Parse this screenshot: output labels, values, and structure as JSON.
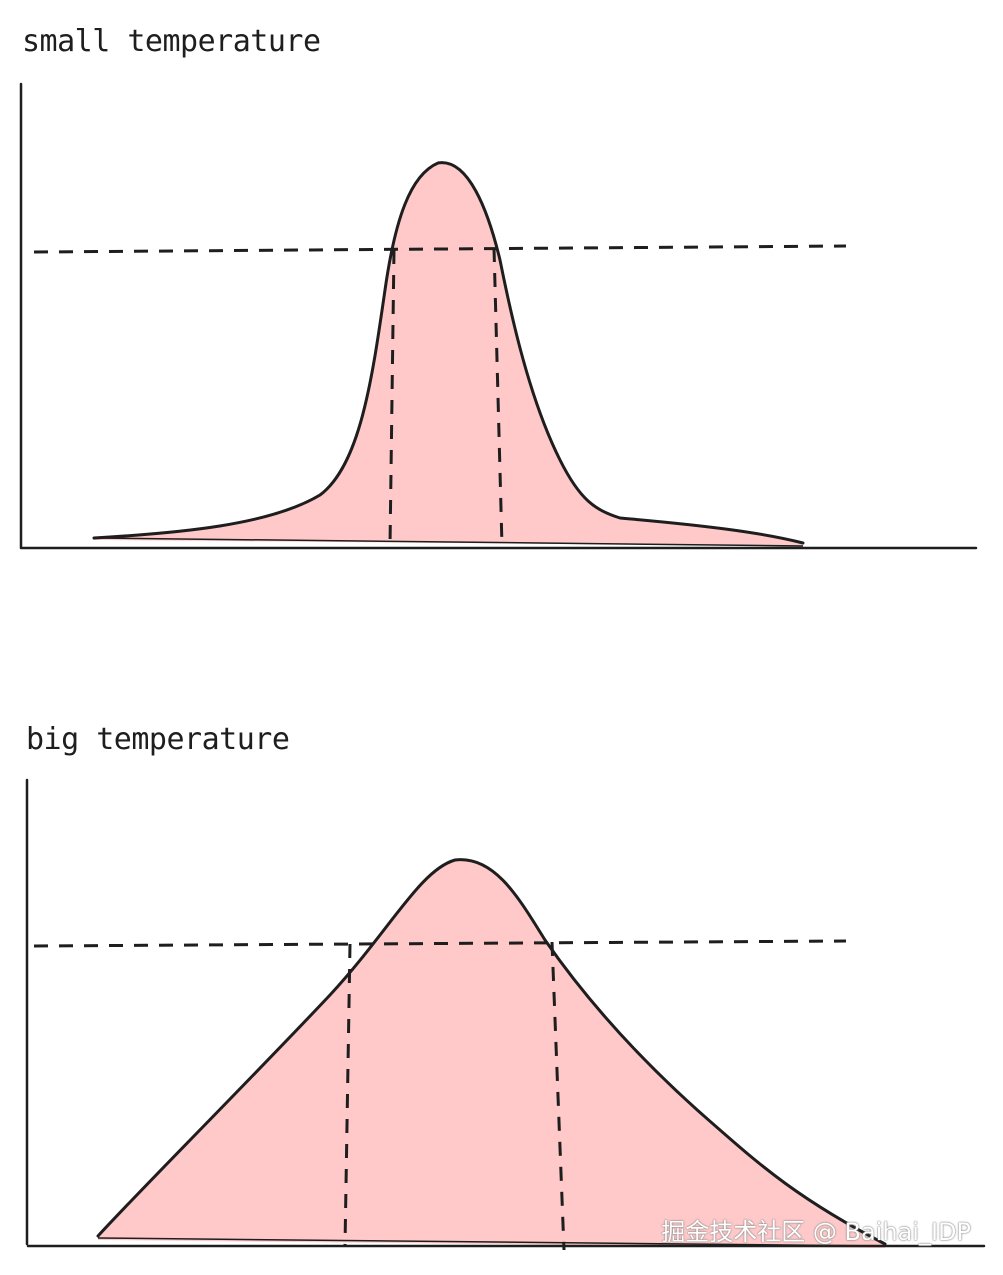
{
  "panels": {
    "small": {
      "title": "small temperature"
    },
    "big": {
      "title": "big temperature"
    }
  },
  "watermark": "掘金技术社区 @ Baihai_IDP",
  "colors": {
    "fill": "#ffc9c9",
    "stroke": "#1e1e1e",
    "background": "#ffffff"
  }
}
